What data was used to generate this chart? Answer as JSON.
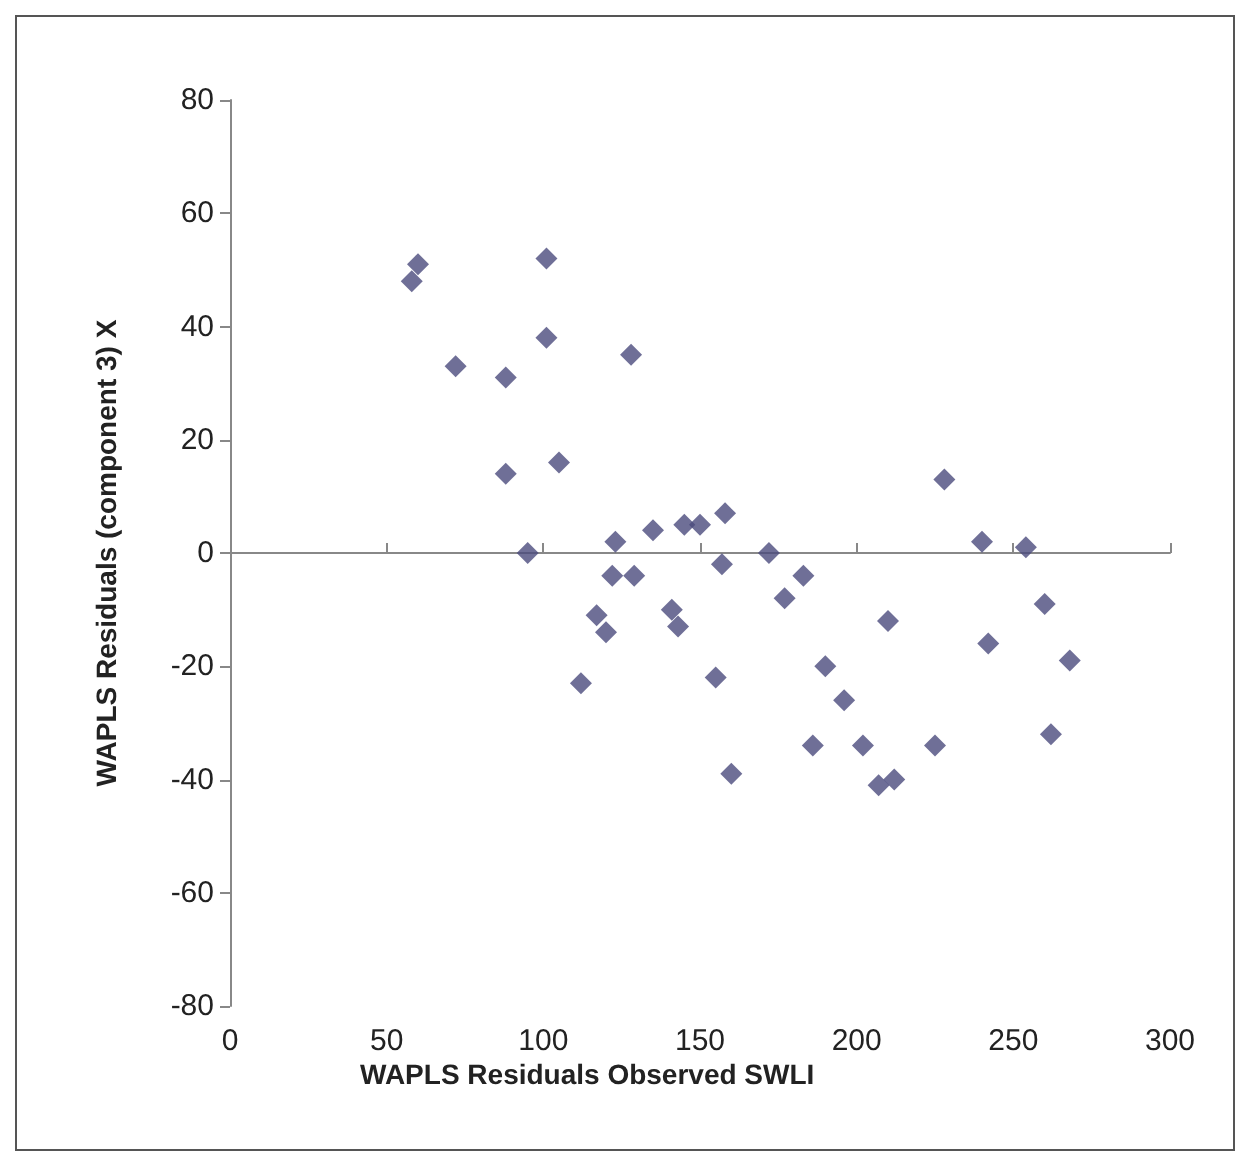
{
  "chart_data": {
    "type": "scatter",
    "xlabel": "WAPLS Residuals Observed SWLI",
    "ylabel": "WAPLS Residuals (component 3) X",
    "marker": "diamond",
    "x": [
      58,
      60,
      72,
      88,
      88,
      95,
      101,
      101,
      105,
      112,
      117,
      120,
      122,
      123,
      128,
      129,
      135,
      141,
      143,
      145,
      150,
      155,
      157,
      158,
      160,
      172,
      177,
      183,
      186,
      190,
      196,
      202,
      207,
      210,
      212,
      225,
      228,
      240,
      242,
      254,
      260,
      262,
      268
    ],
    "series": [
      {
        "color": "#4b4b7d",
        "values": [
          48,
          51,
          33,
          31,
          14,
          0,
          52,
          38,
          16,
          -23,
          -11,
          -14,
          -4,
          2,
          35,
          -4,
          4,
          -10,
          -13,
          5,
          5,
          -22,
          -2,
          7,
          -39,
          0,
          -8,
          -4,
          -34,
          -20,
          -26,
          -34,
          -41,
          -12,
          -40,
          -34,
          13,
          2,
          -16,
          1,
          -9,
          -32,
          -19
        ]
      }
    ],
    "xlim": [
      0,
      300
    ],
    "xticks": [
      0,
      50,
      100,
      150,
      200,
      250,
      300
    ],
    "ylim": [
      -80,
      80
    ],
    "yticks": [
      -80,
      -60,
      -40,
      -20,
      0,
      20,
      40,
      60,
      80
    ]
  }
}
